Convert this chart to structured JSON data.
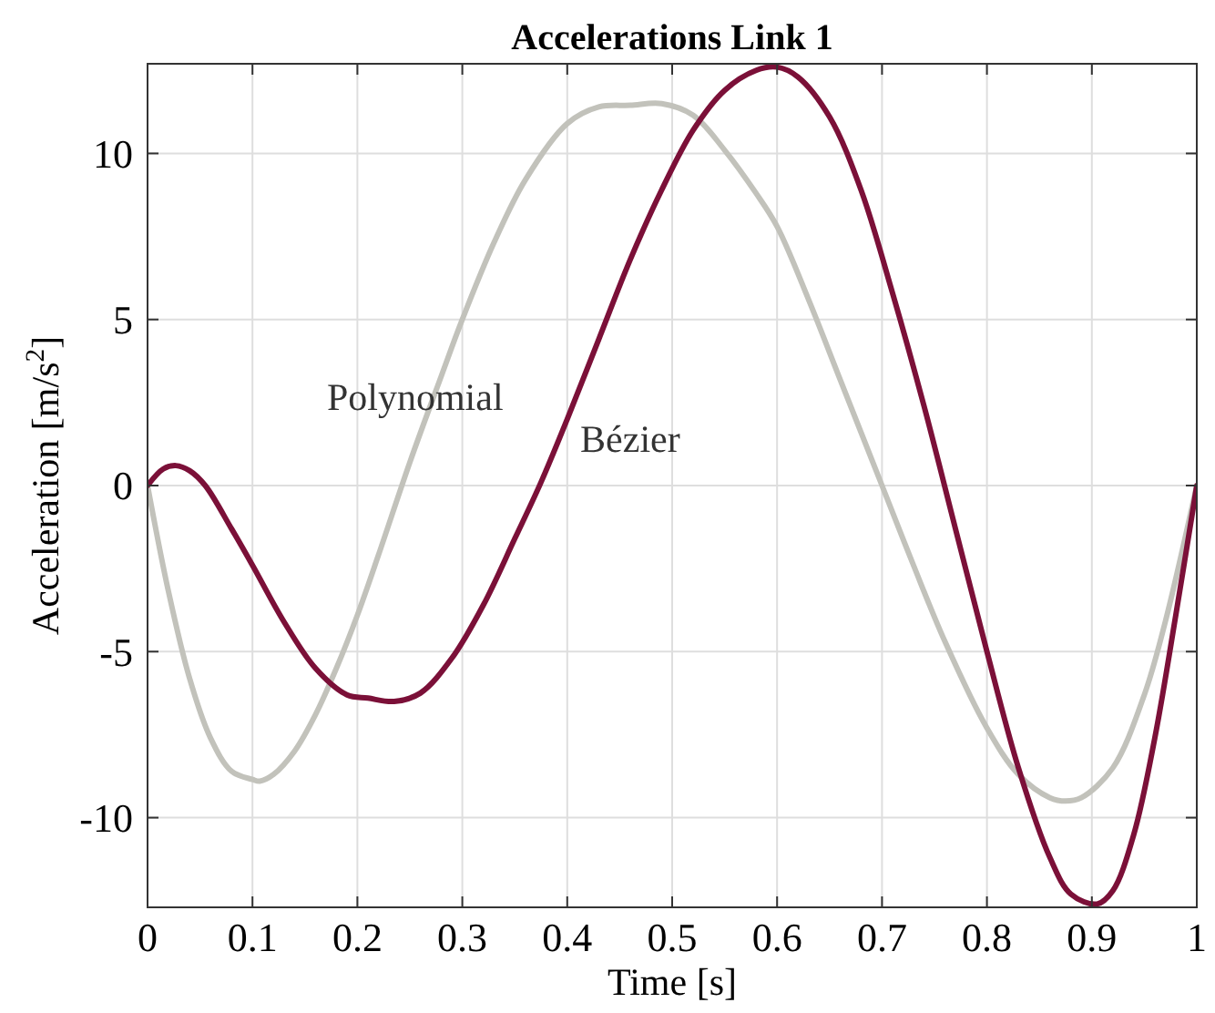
{
  "chart_data": {
    "type": "line",
    "title": "Accelerations Link 1",
    "xlabel": "Time [s]",
    "ylabel": "Acceleration [m/s$^{2}$]",
    "xlim": [
      0,
      1
    ],
    "ylim": [
      -12.7,
      12.7
    ],
    "xticks": [
      0,
      0.1,
      0.2,
      0.3,
      0.4,
      0.5,
      0.6,
      0.7,
      0.8,
      0.9,
      1
    ],
    "yticks": [
      -10,
      -5,
      0,
      5,
      10
    ],
    "grid": true,
    "series": [
      {
        "name": "Polynomial",
        "color": "#c2c2bb",
        "x": [
          0,
          0.02,
          0.04,
          0.06,
          0.08,
          0.1,
          0.107,
          0.12,
          0.14,
          0.16,
          0.18,
          0.2,
          0.22,
          0.25,
          0.28,
          0.3,
          0.33,
          0.36,
          0.4,
          0.43,
          0.46,
          0.49,
          0.52,
          0.55,
          0.58,
          0.6,
          0.63,
          0.66,
          0.7,
          0.73,
          0.76,
          0.8,
          0.83,
          0.86,
          0.875,
          0.89,
          0.92,
          0.95,
          0.97,
          1
        ],
        "values": [
          0,
          -3.2,
          -5.8,
          -7.6,
          -8.6,
          -8.85,
          -8.9,
          -8.7,
          -8.0,
          -6.9,
          -5.5,
          -3.9,
          -2.1,
          0.7,
          3.3,
          5.0,
          7.3,
          9.2,
          10.9,
          11.4,
          11.45,
          11.5,
          11.15,
          10.1,
          8.8,
          7.8,
          5.6,
          3.2,
          0.0,
          -2.4,
          -4.7,
          -7.3,
          -8.7,
          -9.4,
          -9.5,
          -9.4,
          -8.5,
          -6.3,
          -4.1,
          0
        ]
      },
      {
        "name": "Bézier",
        "color": "#7b1038",
        "x": [
          0,
          0.015,
          0.027,
          0.04,
          0.055,
          0.08,
          0.1,
          0.13,
          0.16,
          0.19,
          0.21,
          0.235,
          0.26,
          0.29,
          0.32,
          0.35,
          0.375,
          0.4,
          0.43,
          0.46,
          0.49,
          0.52,
          0.55,
          0.58,
          0.6,
          0.62,
          0.65,
          0.68,
          0.71,
          0.74,
          0.77,
          0.8,
          0.83,
          0.86,
          0.88,
          0.905,
          0.92,
          0.94,
          0.96,
          0.98,
          1
        ],
        "values": [
          0,
          0.5,
          0.6,
          0.45,
          0,
          -1.3,
          -2.4,
          -4.1,
          -5.5,
          -6.3,
          -6.4,
          -6.5,
          -6.25,
          -5.2,
          -3.6,
          -1.6,
          0.1,
          2.0,
          4.4,
          6.8,
          8.9,
          10.7,
          11.9,
          12.5,
          12.6,
          12.3,
          11.1,
          8.9,
          5.8,
          2.4,
          -1.3,
          -5.0,
          -8.5,
          -11.2,
          -12.3,
          -12.6,
          -12.2,
          -10.5,
          -7.6,
          -3.9,
          0
        ]
      }
    ]
  }
}
